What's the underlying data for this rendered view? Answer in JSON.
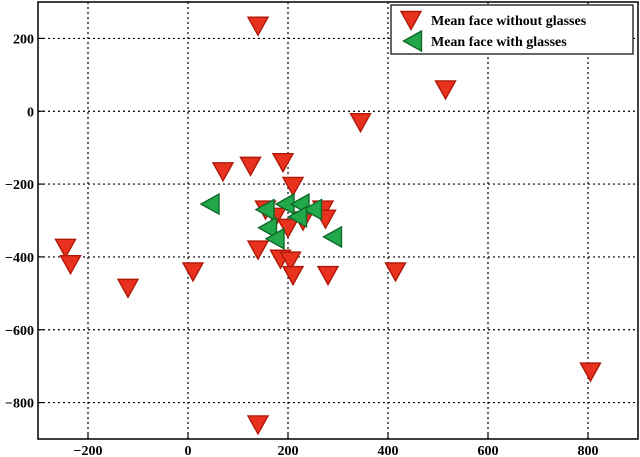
{
  "chart_data": {
    "type": "scatter",
    "title": "",
    "xlabel": "",
    "ylabel": "",
    "xlim": [
      -300,
      900
    ],
    "ylim": [
      -900,
      300
    ],
    "xticks": [
      -200,
      0,
      200,
      400,
      600,
      800
    ],
    "yticks": [
      200,
      0,
      -200,
      -400,
      -600,
      -800
    ],
    "grid": true,
    "legend_position": "top-right",
    "series": [
      {
        "name": "Mean face without glasses",
        "marker": "triangle-down",
        "color": "#e8321e",
        "edge": "#b01808",
        "points": [
          [
            140,
            235
          ],
          [
            515,
            60
          ],
          [
            345,
            -30
          ],
          [
            70,
            -165
          ],
          [
            125,
            -150
          ],
          [
            190,
            -140
          ],
          [
            210,
            -205
          ],
          [
            155,
            -270
          ],
          [
            175,
            -290
          ],
          [
            200,
            -320
          ],
          [
            230,
            -300
          ],
          [
            270,
            -270
          ],
          [
            275,
            -295
          ],
          [
            -245,
            -375
          ],
          [
            -235,
            -420
          ],
          [
            -120,
            -485
          ],
          [
            10,
            -440
          ],
          [
            140,
            -380
          ],
          [
            185,
            -405
          ],
          [
            205,
            -410
          ],
          [
            210,
            -450
          ],
          [
            280,
            -450
          ],
          [
            415,
            -440
          ],
          [
            805,
            -715
          ],
          [
            140,
            -860
          ]
        ]
      },
      {
        "name": "Mean face with glasses",
        "marker": "triangle-left",
        "color": "#22a84a",
        "edge": "#0e6a2a",
        "points": [
          [
            45,
            -255
          ],
          [
            155,
            -270
          ],
          [
            195,
            -255
          ],
          [
            225,
            -255
          ],
          [
            250,
            -270
          ],
          [
            160,
            -320
          ],
          [
            220,
            -290
          ],
          [
            175,
            -350
          ],
          [
            290,
            -345
          ]
        ]
      }
    ]
  }
}
